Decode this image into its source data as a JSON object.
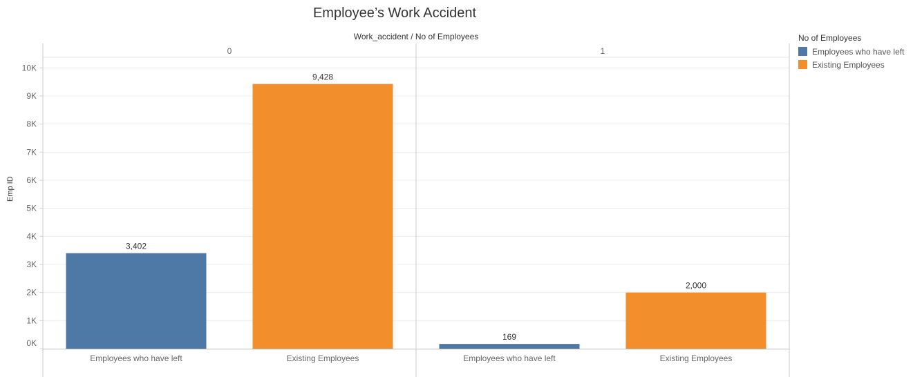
{
  "chart_data": {
    "type": "bar",
    "title": "Employee’s Work Accident",
    "column_header": "Work_accident  /  No of Employees",
    "ylabel": "Emp ID",
    "ylim": [
      0,
      10500
    ],
    "yticks": [
      0,
      1000,
      2000,
      3000,
      4000,
      5000,
      6000,
      7000,
      8000,
      9000,
      10000
    ],
    "ytick_labels": [
      "0K",
      "1K",
      "2K",
      "3K",
      "4K",
      "5K",
      "6K",
      "7K",
      "8K",
      "9K",
      "10K"
    ],
    "grid": true,
    "legend": {
      "title": "No of Employees",
      "placement": "right",
      "items": [
        {
          "label": "Employees who have left",
          "color": "#4e79a7"
        },
        {
          "label": "Existing Employees",
          "color": "#f28e2b"
        }
      ]
    },
    "panels": [
      {
        "label": "0",
        "categories": [
          "Employees who have left",
          "Existing Employees"
        ],
        "values": [
          3402,
          9428
        ],
        "value_labels": [
          "3,402",
          "9,428"
        ],
        "colors": [
          "#4e79a7",
          "#f28e2b"
        ]
      },
      {
        "label": "1",
        "categories": [
          "Employees who have left",
          "Existing Employees"
        ],
        "values": [
          169,
          2000
        ],
        "value_labels": [
          "169",
          "2,000"
        ],
        "colors": [
          "#4e79a7",
          "#f28e2b"
        ]
      }
    ]
  }
}
